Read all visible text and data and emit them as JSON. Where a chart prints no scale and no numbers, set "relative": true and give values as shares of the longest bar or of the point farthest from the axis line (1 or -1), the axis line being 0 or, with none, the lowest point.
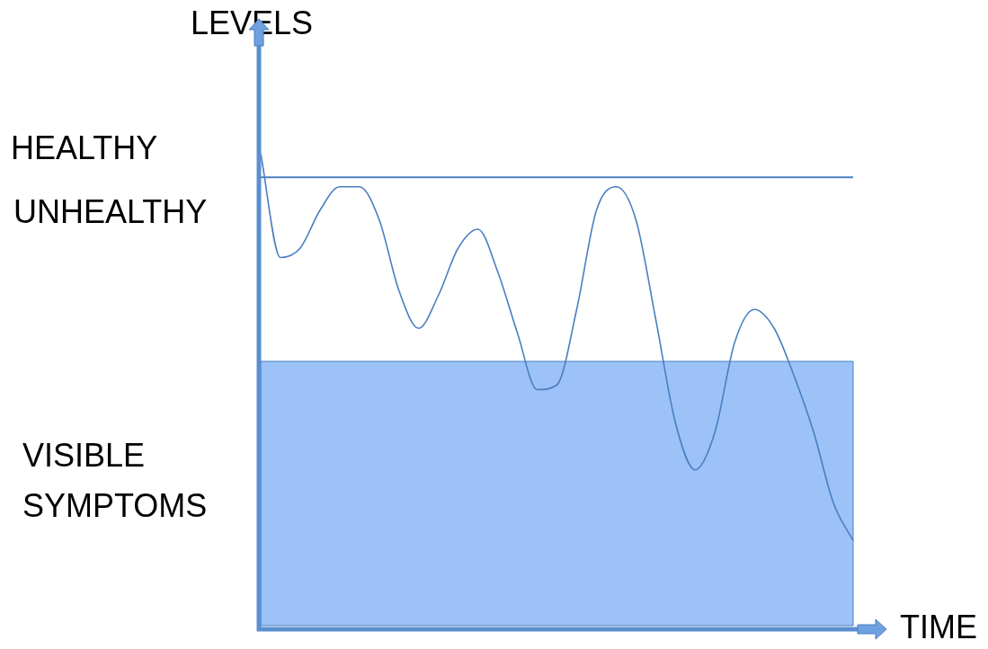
{
  "chart_data": {
    "type": "line",
    "relative": true,
    "xlabel": "TIME",
    "ylabel": "LEVELS",
    "categories": [
      null,
      null,
      null,
      null,
      null,
      null,
      null,
      null,
      null,
      null,
      null,
      null,
      null,
      null,
      null,
      null,
      null,
      null,
      null,
      null,
      null,
      null,
      null,
      null,
      null,
      null,
      null,
      null,
      null,
      null,
      null
    ],
    "series": [
      {
        "color": "#4a7fc1",
        "values": [
          1.0,
          0.78,
          0.8,
          0.88,
          0.93,
          0.93,
          0.86,
          0.71,
          0.63,
          0.7,
          0.8,
          0.84,
          0.75,
          0.62,
          0.5,
          0.51,
          0.67,
          0.88,
          0.93,
          0.86,
          0.65,
          0.43,
          0.33,
          0.41,
          0.6,
          0.67,
          0.63,
          0.53,
          0.41,
          0.26,
          0.18
        ]
      }
    ],
    "ref_lines": [
      {
        "axis": "y",
        "value": 0.95,
        "color": "#4a7fc1"
      }
    ],
    "bands": [
      {
        "axis": "y",
        "from": 0,
        "to": 0.56,
        "label": "VISIBLE SYMPTOMS",
        "color": "#9cc2f7"
      }
    ],
    "annotations": [
      "HEALTHY",
      "UNHEALTHY"
    ],
    "legend": false,
    "grid": false,
    "marker": "none"
  }
}
